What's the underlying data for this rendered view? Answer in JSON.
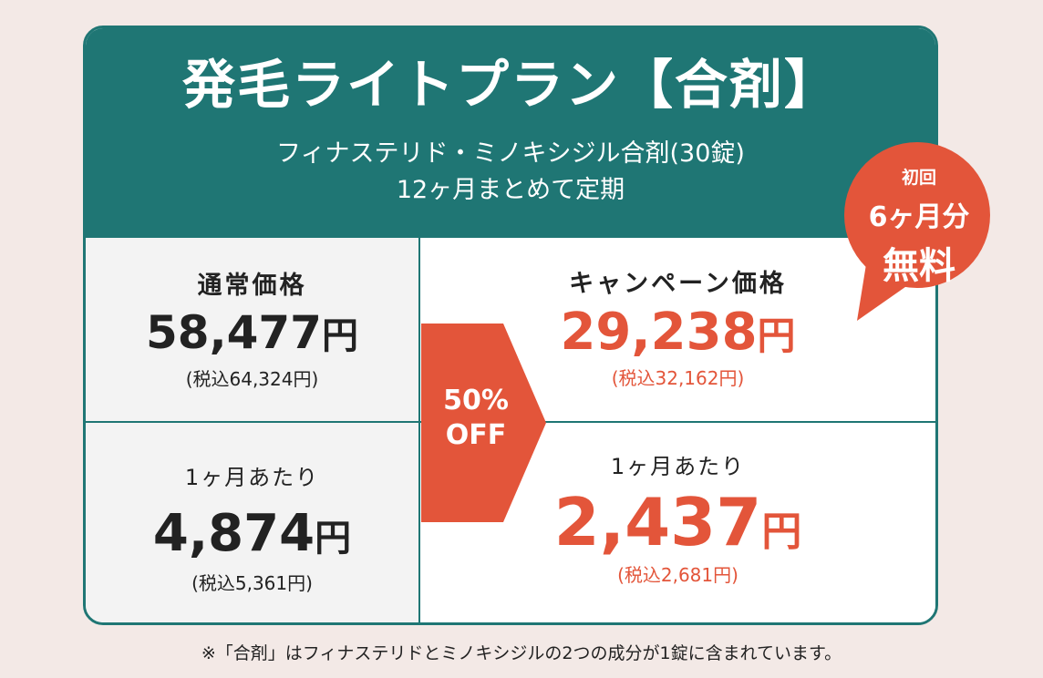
{
  "header": {
    "title": "発毛ライトプラン【合剤】",
    "subtitle_line1": "フィナステリド・ミノキシジル合剤(30錠)",
    "subtitle_line2": "12ヶ月まとめて定期"
  },
  "regular": {
    "label": "通常価格",
    "price": "58,477",
    "yen": "円",
    "tax_incl": "(税込64,324円)",
    "per_month_label": "1ヶ月あたり",
    "per_month_price": "4,874",
    "per_month_tax": "(税込5,361円)"
  },
  "discount": {
    "line1": "50%",
    "line2": "OFF"
  },
  "campaign": {
    "label": "キャンペーン価格",
    "price": "29,238",
    "yen": "円",
    "tax_incl": "(税込32,162円)",
    "per_month_label": "1ヶ月あたり",
    "per_month_price": "2,437",
    "per_month_tax": "(税込2,681円)"
  },
  "badge": {
    "line1": "初回",
    "line2": "6ヶ月分",
    "line3": "無料"
  },
  "footnote": "※「合剤」はフィナステリドとミノキシジルの2つの成分が1錠に含まれています。",
  "colors": {
    "teal": "#1f7674",
    "accent_red": "#e3553a",
    "background": "#f3e9e6"
  }
}
